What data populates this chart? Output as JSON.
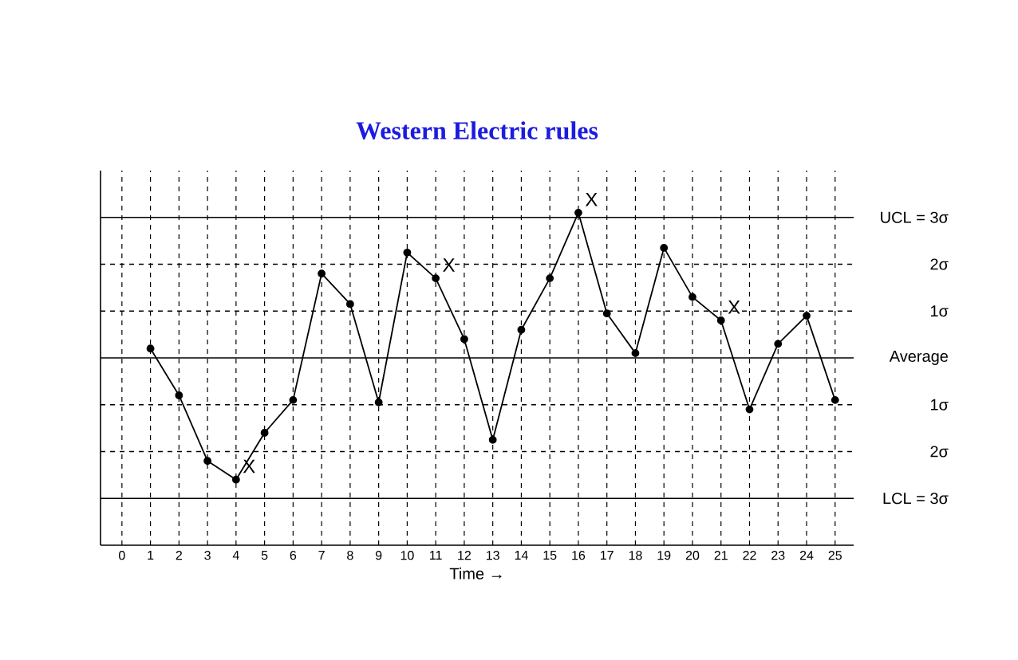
{
  "chart_data": {
    "type": "line",
    "title": "Western Electric rules",
    "xlabel": "Time →",
    "color": "#000000",
    "marker": "circle",
    "grid": "x",
    "x": [
      1,
      2,
      3,
      4,
      5,
      6,
      7,
      8,
      9,
      10,
      11,
      12,
      13,
      14,
      15,
      16,
      17,
      18,
      19,
      20,
      21,
      22,
      23,
      24,
      25
    ],
    "values": [
      0.2,
      -0.8,
      -2.2,
      -2.6,
      -1.6,
      -0.9,
      1.8,
      1.15,
      -0.95,
      2.25,
      1.7,
      0.4,
      -1.75,
      0.6,
      1.7,
      3.1,
      0.95,
      0.1,
      2.35,
      1.3,
      0.8,
      -1.1,
      0.3,
      0.9,
      -0.9
    ],
    "xlim": [
      -0.75,
      25.65
    ],
    "ylim": [
      -4,
      4
    ],
    "xticks": [
      0,
      1,
      2,
      3,
      4,
      5,
      6,
      7,
      8,
      9,
      10,
      11,
      12,
      13,
      14,
      15,
      16,
      17,
      18,
      19,
      20,
      21,
      22,
      23,
      24,
      25
    ],
    "yticks": [
      {
        "value": 3,
        "label": "UCL = 3σ"
      },
      {
        "value": 2,
        "label": "2σ"
      },
      {
        "value": 1,
        "label": "1σ"
      },
      {
        "value": 0,
        "label": "Average"
      },
      {
        "value": -1,
        "label": "1σ"
      },
      {
        "value": -2,
        "label": "2σ"
      },
      {
        "value": -3,
        "label": "LCL = 3σ"
      }
    ],
    "ref_lines": [
      {
        "axis": "y",
        "value": 3,
        "line_style": "solid"
      },
      {
        "axis": "y",
        "value": 2,
        "line_style": "dashed"
      },
      {
        "axis": "y",
        "value": 1,
        "line_style": "dashed"
      },
      {
        "axis": "y",
        "value": 0,
        "line_style": "solid"
      },
      {
        "axis": "y",
        "value": -1,
        "line_style": "dashed"
      },
      {
        "axis": "y",
        "value": -2,
        "line_style": "dashed"
      },
      {
        "axis": "y",
        "value": -3,
        "line_style": "solid"
      }
    ],
    "annotations": [
      {
        "text": "X",
        "x": 4,
        "y": -2.6
      },
      {
        "text": "X",
        "x": 11,
        "y": 1.7
      },
      {
        "text": "X",
        "x": 16,
        "y": 3.1
      },
      {
        "text": "X",
        "x": 21,
        "y": 0.8
      }
    ]
  }
}
